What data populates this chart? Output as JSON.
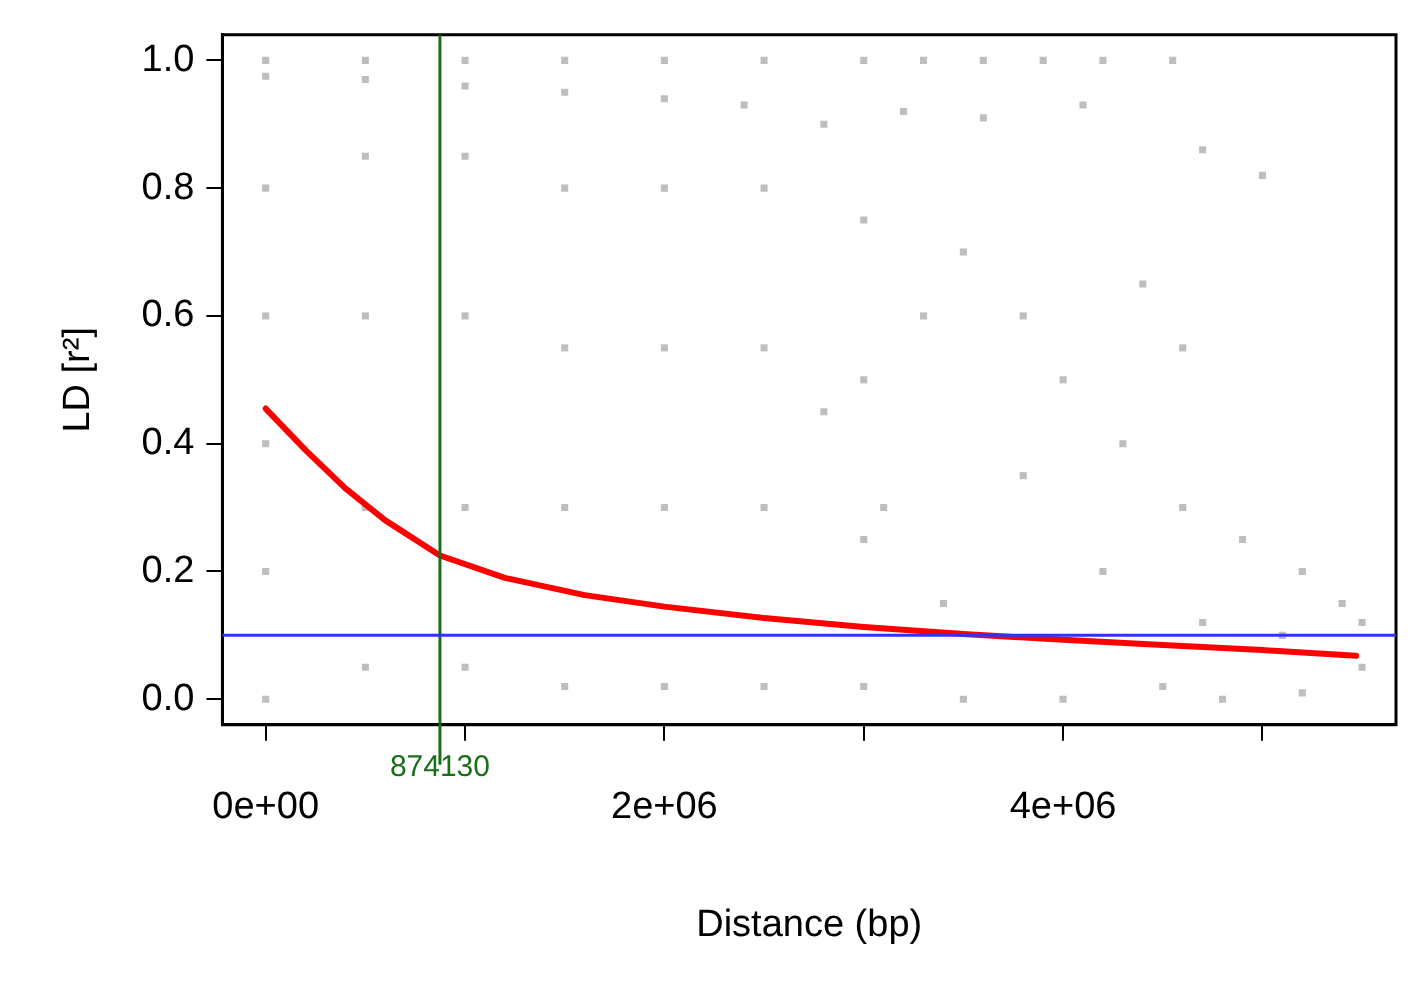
{
  "chart_data": {
    "type": "scatter",
    "xlabel": "Distance (bp)",
    "ylabel": "LD [r²]",
    "xlim": [
      -217000,
      5670000
    ],
    "ylim": [
      -0.04,
      1.04
    ],
    "xticks": [
      {
        "value": 0,
        "label": "0e+00"
      },
      {
        "value": 1000000,
        "label": null
      },
      {
        "value": 2000000,
        "label": "2e+06"
      },
      {
        "value": 3000000,
        "label": null
      },
      {
        "value": 4000000,
        "label": "4e+06"
      },
      {
        "value": 5000000,
        "label": null
      }
    ],
    "yticks": [
      {
        "value": 0,
        "label": "0.0"
      },
      {
        "value": 0.2,
        "label": "0.2"
      },
      {
        "value": 0.4,
        "label": "0.4"
      },
      {
        "value": 0.6,
        "label": "0.6"
      },
      {
        "value": 0.8,
        "label": "0.8"
      },
      {
        "value": 1,
        "label": "1.0"
      }
    ],
    "grid": false,
    "legend": false,
    "series": [
      {
        "type": "scatter",
        "color": "#bebebe",
        "marker": "square",
        "x": [
          0,
          500000,
          1000000,
          1500000,
          2000000,
          2500000,
          3000000,
          3300000,
          3600000,
          3900000,
          4200000,
          4550000,
          0,
          500000,
          1000000,
          1500000,
          2000000,
          2400000,
          2800000,
          3200000,
          3600000,
          4100000,
          4700000,
          5000000,
          0,
          0,
          0,
          0,
          0,
          500000,
          500000,
          500000,
          500000,
          1000000,
          1000000,
          1000000,
          1000000,
          1500000,
          1500000,
          1500000,
          1500000,
          2000000,
          2000000,
          2000000,
          2000000,
          2500000,
          2500000,
          2500000,
          2500000,
          3000000,
          3000000,
          3000000,
          3000000,
          3300000,
          3500000,
          3800000,
          4000000,
          4300000,
          4600000,
          4900000,
          5200000,
          5400000,
          5500000,
          5500000,
          5200000,
          4800000,
          4500000,
          4000000,
          3500000,
          3800000,
          4200000,
          4700000,
          5100000,
          2800000,
          3100000,
          3400000,
          4400000,
          4600000
        ],
        "values": [
          1,
          1,
          1,
          1,
          1,
          1,
          1,
          1,
          1,
          1,
          1,
          1,
          0.975,
          0.97,
          0.96,
          0.95,
          0.94,
          0.93,
          0.9,
          0.92,
          0.91,
          0.93,
          0.86,
          0.82,
          0.8,
          0.6,
          0.4,
          0.2,
          0,
          0.85,
          0.6,
          0.3,
          0.05,
          0.85,
          0.6,
          0.3,
          0.05,
          0.8,
          0.55,
          0.3,
          0.02,
          0.8,
          0.55,
          0.3,
          0.02,
          0.8,
          0.55,
          0.3,
          0.02,
          0.75,
          0.5,
          0.25,
          0.02,
          0.6,
          0.7,
          0.6,
          0.5,
          0.4,
          0.3,
          0.25,
          0.2,
          0.15,
          0.12,
          0.05,
          0.01,
          0,
          0.02,
          0,
          0,
          0.35,
          0.2,
          0.12,
          0.1,
          0.45,
          0.3,
          0.15,
          0.65,
          0.55
        ]
      },
      {
        "type": "line",
        "color": "#ff0000",
        "marker": "none",
        "x": [
          0,
          200000,
          400000,
          600000,
          874130,
          1200000,
          1600000,
          2000000,
          2500000,
          3000000,
          3500000,
          4000000,
          4500000,
          5000000,
          5470000
        ],
        "values": [
          0.455,
          0.39,
          0.33,
          0.28,
          0.225,
          0.19,
          0.163,
          0.145,
          0.127,
          0.113,
          0.102,
          0.093,
          0.085,
          0.077,
          0.068
        ]
      }
    ],
    "ref_lines": [
      {
        "axis": "x",
        "value": 874130,
        "label": "874130",
        "color": "#1a6e1a"
      },
      {
        "axis": "y",
        "value": 0.1,
        "color": "#3333ee"
      }
    ]
  }
}
